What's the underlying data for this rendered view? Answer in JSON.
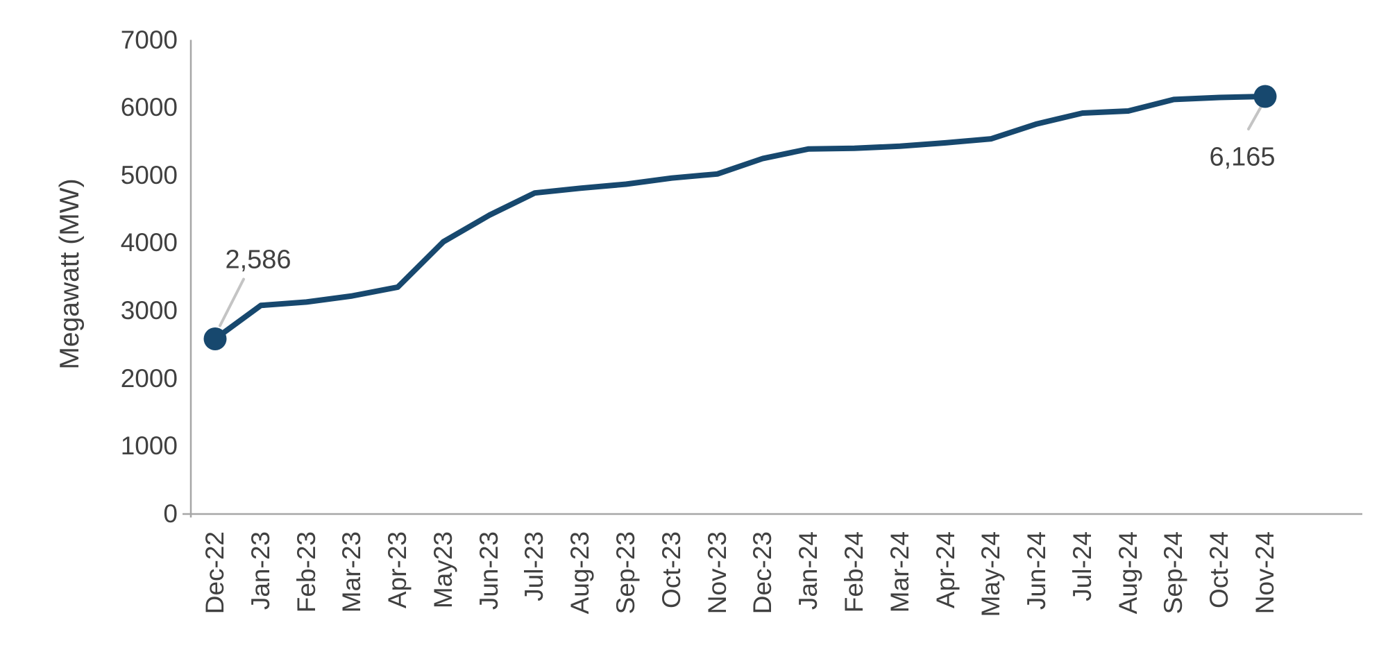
{
  "chart_data": {
    "type": "line",
    "title": "",
    "xlabel": "",
    "ylabel": "Megawatt (MW)",
    "ylim": [
      0,
      7000
    ],
    "ytick_step": 1000,
    "yticks": [
      "0",
      "1000",
      "2000",
      "3000",
      "4000",
      "5000",
      "6000",
      "7000"
    ],
    "grid": false,
    "legend": "none",
    "categories": [
      "Dec-22",
      "Jan-23",
      "Feb-23",
      "Mar-23",
      "Apr-23",
      "May23",
      "Jun-23",
      "Jul-23",
      "Aug-23",
      "Sep-23",
      "Oct-23",
      "Nov-23",
      "Dec-23",
      "Jan-24",
      "Feb-24",
      "Mar-24",
      "Apr-24",
      "May-24",
      "Jun-24",
      "Jul-24",
      "Aug-24",
      "Sep-24",
      "Oct-24",
      "Nov-24"
    ],
    "series": [
      {
        "name": "Megawatt (MW)",
        "values": [
          2586,
          3080,
          3130,
          3220,
          3350,
          4020,
          4410,
          4740,
          4810,
          4870,
          4960,
          5020,
          5250,
          5390,
          5400,
          5430,
          5480,
          5540,
          5760,
          5920,
          5950,
          6120,
          6150,
          6165
        ]
      }
    ],
    "annotations": {
      "first": {
        "label": "2,586",
        "category": "Dec-22",
        "value": 2586
      },
      "last": {
        "label": "6,165",
        "category": "Nov-24",
        "value": 6165
      }
    },
    "colors": {
      "line": "#17486E",
      "marker": "#17486E",
      "axis": "#A6A6A6",
      "leader": "#C4C4C4",
      "text": "#404040"
    }
  }
}
